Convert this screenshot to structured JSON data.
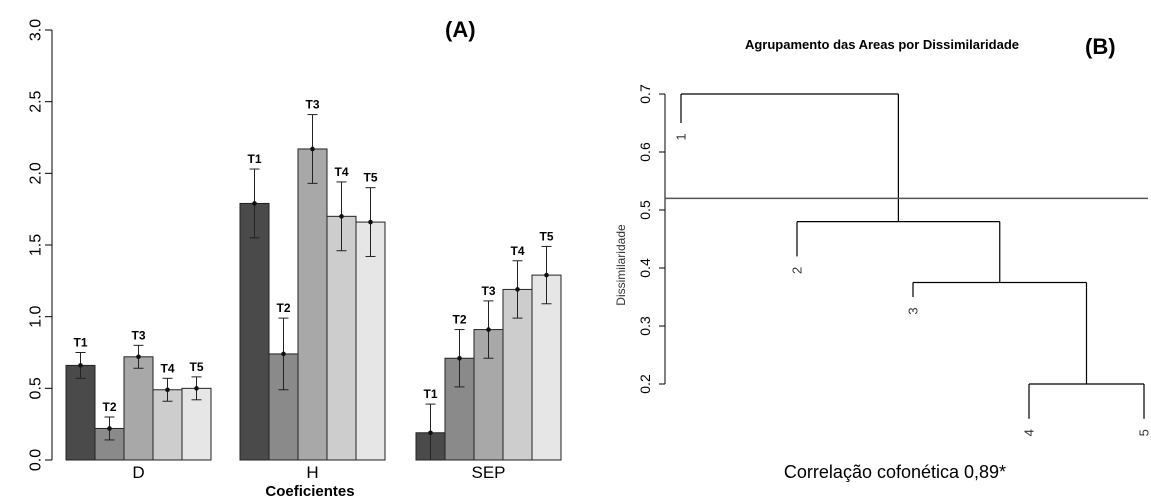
{
  "chart_data": [
    {
      "panel": "(A)",
      "type": "bar",
      "xlabel": "Coeficientes",
      "ylabel": "",
      "ylim": [
        0,
        3.0
      ],
      "yticks": [
        "0.0",
        "0.5",
        "1.0",
        "1.5",
        "2.0",
        "2.5",
        "3.0"
      ],
      "categories": [
        "D",
        "H",
        "SEP"
      ],
      "series": [
        {
          "name": "T1",
          "color": "#4a4a4a",
          "values": [
            0.66,
            1.79,
            0.19
          ],
          "errors": [
            0.09,
            0.24,
            0.2
          ]
        },
        {
          "name": "T2",
          "color": "#8a8a8a",
          "values": [
            0.22,
            0.74,
            0.71
          ],
          "errors": [
            0.08,
            0.25,
            0.2
          ]
        },
        {
          "name": "T3",
          "color": "#a8a8a8",
          "values": [
            0.72,
            2.17,
            0.91
          ],
          "errors": [
            0.08,
            0.24,
            0.2
          ]
        },
        {
          "name": "T4",
          "color": "#cdcdcd",
          "values": [
            0.49,
            1.7,
            1.19
          ],
          "errors": [
            0.08,
            0.24,
            0.2
          ]
        },
        {
          "name": "T5",
          "color": "#e6e6e6",
          "values": [
            0.5,
            1.66,
            1.29
          ],
          "errors": [
            0.08,
            0.24,
            0.2
          ]
        }
      ],
      "bar_labels": "T1-T5 above each bar",
      "grid": false
    },
    {
      "panel": "(B)",
      "type": "dendrogram",
      "title": "Agrupamento das Areas por Dissimilaridade",
      "ylabel": "Dissimilaridade",
      "ylim": [
        0.2,
        0.7
      ],
      "yticks": [
        "0.2",
        "0.3",
        "0.4",
        "0.5",
        "0.6",
        "0.7"
      ],
      "leaves": [
        "1",
        "2",
        "3",
        "4",
        "5"
      ],
      "leaf_heights": [
        0.65,
        0.42,
        0.35,
        0.14,
        0.14
      ],
      "merges": [
        {
          "left": "4",
          "right": "5",
          "height": 0.2
        },
        {
          "left": "3",
          "right": "4-5",
          "height": 0.375
        },
        {
          "left": "2",
          "right": "3-4-5",
          "height": 0.48
        },
        {
          "left": "1",
          "right": "2-3-4-5",
          "height": 0.7
        }
      ],
      "cut_line": 0.52,
      "annotation": "Correlação cofonética 0,89*"
    }
  ]
}
